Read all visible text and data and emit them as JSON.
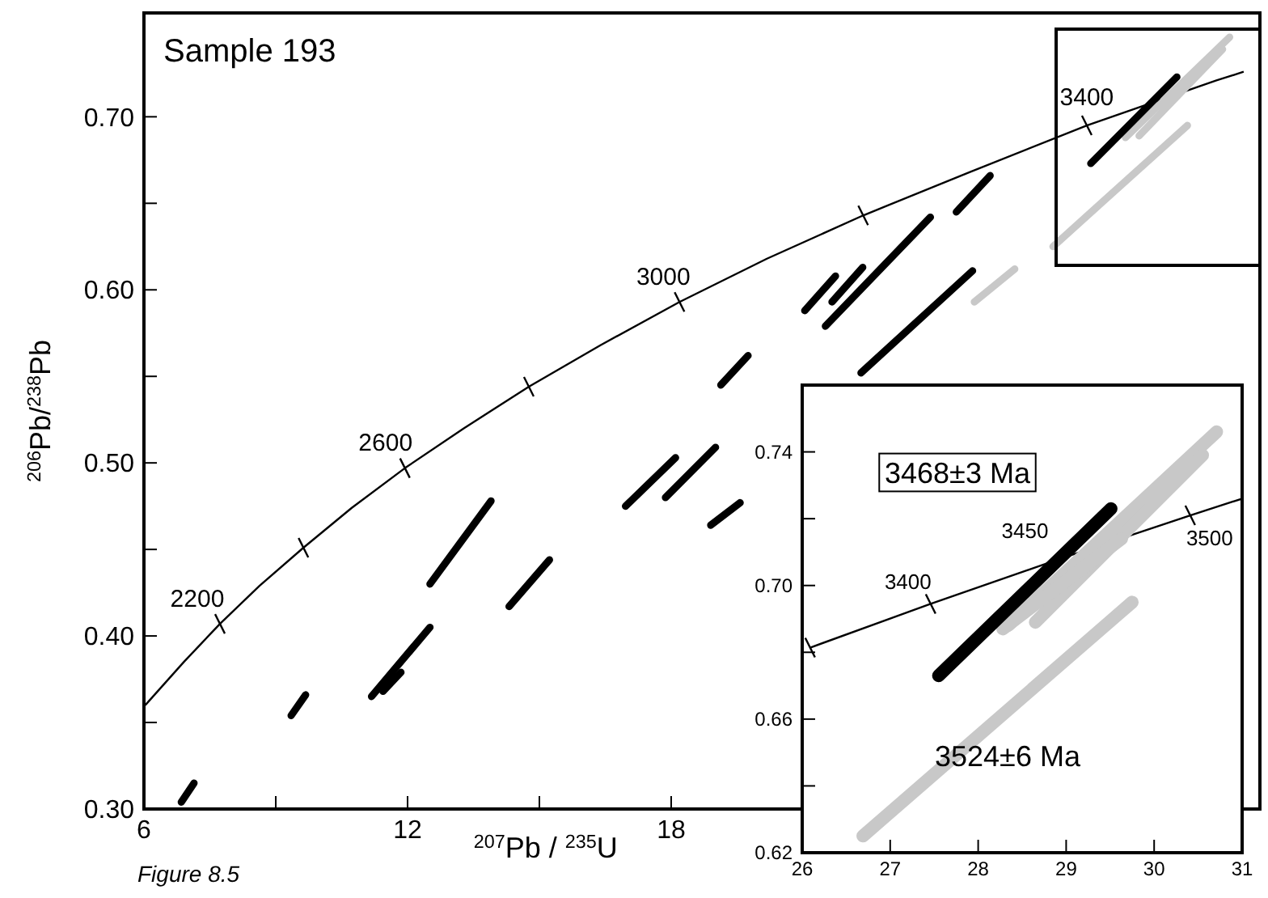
{
  "chart_data": [
    {
      "type": "line",
      "title": "Sample 193",
      "xlabel": "$^{207}$Pb / $^{235}$U",
      "ylabel": "$^{206}$Pb/$^{238}$Pb",
      "xlim": [
        6,
        31.4
      ],
      "ylim": [
        0.3,
        0.76
      ],
      "xticks": [
        6,
        {
          "value": 9,
          "label": null
        },
        12,
        {
          "value": 15,
          "label": null
        },
        18
      ],
      "yticks": [
        {
          "value": 0.3,
          "label": "0.30"
        },
        {
          "value": 0.35,
          "label": null
        },
        {
          "value": 0.4,
          "label": "0.40"
        },
        {
          "value": 0.45,
          "label": null
        },
        {
          "value": 0.5,
          "label": "0.50"
        },
        {
          "value": 0.55,
          "label": null
        },
        {
          "value": 0.6,
          "label": "0.60"
        },
        {
          "value": 0.65,
          "label": null
        },
        {
          "value": 0.7,
          "label": "0.70"
        }
      ],
      "grid": false,
      "annotations": [
        {
          "text": "2200",
          "x": 7.73,
          "y": 0.407
        },
        {
          "text": "2600",
          "x": 11.94,
          "y": 0.497
        },
        {
          "text": "3000",
          "x": 18.19,
          "y": 0.593
        },
        {
          "text": "3400",
          "x": 27.46,
          "y": 0.695
        },
        "Figure 8.5"
      ],
      "series": [
        {
          "color": "#000000",
          "x": [
            6.03,
            6.17,
            6.91,
            7.73,
            8.63,
            9.63,
            10.73,
            11.94,
            13.28,
            14.76,
            16.39,
            18.19,
            20.18,
            22.37,
            24.79,
            27.46,
            30.41,
            31.03
          ],
          "values": [
            0.36,
            0.364,
            0.385,
            0.407,
            0.429,
            0.451,
            0.474,
            0.497,
            0.52,
            0.544,
            0.568,
            0.593,
            0.618,
            0.643,
            0.668,
            0.695,
            0.721,
            0.726
          ]
        },
        {
          "type": "scatter",
          "marker": "cross",
          "color": "#000000",
          "x": [
            7.73,
            9.63,
            11.94,
            14.76,
            18.19,
            22.37,
            27.46
          ],
          "values": [
            0.407,
            0.451,
            0.497,
            0.544,
            0.593,
            0.643,
            0.695
          ]
        },
        {
          "color": "#000000",
          "x": [
            6.85,
            7.14
          ],
          "values": [
            0.304,
            0.315
          ]
        },
        {
          "color": "#000000",
          "x": [
            9.35,
            9.68
          ],
          "values": [
            0.354,
            0.366
          ]
        },
        {
          "color": "#000000",
          "x": [
            11.18,
            12.51
          ],
          "values": [
            0.365,
            0.405
          ]
        },
        {
          "color": "#000000",
          "x": [
            11.44,
            11.85
          ],
          "values": [
            0.368,
            0.379
          ]
        },
        {
          "color": "#000000",
          "x": [
            12.51,
            13.9
          ],
          "values": [
            0.43,
            0.478
          ]
        },
        {
          "color": "#000000",
          "x": [
            14.31,
            15.23
          ],
          "values": [
            0.417,
            0.444
          ]
        },
        {
          "color": "#000000",
          "x": [
            16.96,
            18.1
          ],
          "values": [
            0.475,
            0.503
          ]
        },
        {
          "color": "#000000",
          "x": [
            17.87,
            19.01
          ],
          "values": [
            0.48,
            0.509
          ]
        },
        {
          "color": "#000000",
          "x": [
            18.9,
            19.57
          ],
          "values": [
            0.464,
            0.477
          ]
        },
        {
          "color": "#000000",
          "x": [
            19.13,
            19.75
          ],
          "values": [
            0.545,
            0.562
          ]
        },
        {
          "color": "#000000",
          "x": [
            21.04,
            21.74
          ],
          "values": [
            0.588,
            0.608
          ]
        },
        {
          "color": "#000000",
          "x": [
            21.66,
            22.36
          ],
          "values": [
            0.593,
            0.613
          ]
        },
        {
          "color": "#000000",
          "x": [
            21.51,
            23.9
          ],
          "values": [
            0.579,
            0.642
          ]
        },
        {
          "color": "#000000",
          "x": [
            22.32,
            24.86
          ],
          "values": [
            0.552,
            0.611
          ]
        },
        {
          "color": "#c8c8c8",
          "x": [
            24.9,
            25.82
          ],
          "values": [
            0.593,
            0.612
          ]
        },
        {
          "color": "#000000",
          "x": [
            24.49,
            25.26
          ],
          "values": [
            0.645,
            0.666
          ]
        },
        {
          "color": "#c8c8c8",
          "x": [
            28.34,
            30.71
          ],
          "values": [
            0.688,
            0.746
          ]
        },
        {
          "color": "#c8c8c8",
          "x": [
            28.65,
            30.55
          ],
          "values": [
            0.689,
            0.739
          ]
        },
        {
          "color": "#000000",
          "x": [
            27.55,
            29.51
          ],
          "values": [
            0.673,
            0.723
          ]
        },
        {
          "color": "#c8c8c8",
          "x": [
            26.69,
            29.75
          ],
          "values": [
            0.625,
            0.695
          ]
        }
      ]
    },
    {
      "type": "line",
      "xlim": [
        26,
        31
      ],
      "ylim": [
        0.62,
        0.76
      ],
      "xticks": [
        26,
        27,
        28,
        29,
        30,
        31
      ],
      "yticks": [
        {
          "value": 0.62,
          "label": "0.62"
        },
        {
          "value": 0.64,
          "label": null
        },
        {
          "value": 0.66,
          "label": "0.66"
        },
        {
          "value": 0.68,
          "label": null
        },
        {
          "value": 0.7,
          "label": "0.70"
        },
        {
          "value": 0.72,
          "label": null
        },
        {
          "value": 0.74,
          "label": "0.74"
        }
      ],
      "grid": false,
      "annotations": [
        {
          "text": "3400",
          "x": 27.46,
          "y": 0.6945
        },
        {
          "text": "3450",
          "x": 28.9,
          "y": 0.7077
        },
        {
          "text": "3500",
          "x": 30.41,
          "y": 0.721
        },
        "3468±3 Ma",
        "3524±6 Ma"
      ],
      "series": [
        {
          "color": "#000000",
          "x": [
            26.09,
            27.46,
            28.9,
            30.41,
            31.0
          ],
          "values": [
            0.6814,
            0.6945,
            0.7077,
            0.721,
            0.726
          ]
        },
        {
          "type": "scatter",
          "marker": "cross",
          "color": "#000000",
          "x": [
            26.09,
            27.46,
            30.41
          ],
          "values": [
            0.6814,
            0.6945,
            0.721
          ]
        },
        {
          "color": "#c8c8c8",
          "x": [
            28.34,
            30.71
          ],
          "values": [
            0.688,
            0.746
          ]
        },
        {
          "color": "#c8c8c8",
          "x": [
            28.65,
            30.55
          ],
          "values": [
            0.689,
            0.739
          ]
        },
        {
          "color": "#c8c8c8",
          "x": [
            28.28,
            29.63
          ],
          "values": [
            0.687,
            0.714
          ]
        },
        {
          "color": "#000000",
          "x": [
            27.55,
            29.51
          ],
          "values": [
            0.673,
            0.723
          ]
        },
        {
          "color": "#c8c8c8",
          "x": [
            26.69,
            29.75
          ],
          "values": [
            0.625,
            0.695
          ]
        }
      ]
    }
  ]
}
